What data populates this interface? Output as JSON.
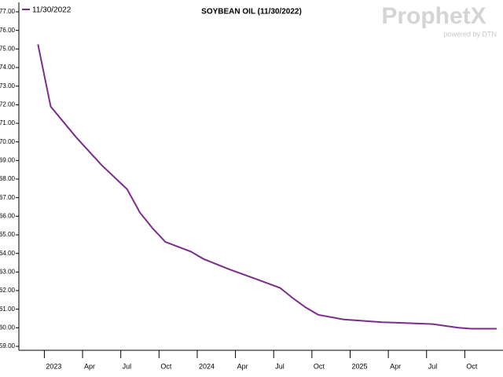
{
  "chart_data": {
    "type": "line",
    "title": "SOYBEAN OIL (11/30/2022)",
    "logo": {
      "text": "ProphetX",
      "subtext": "powered by DTN"
    },
    "x": [
      "2022-12",
      "2023-01",
      "2023-03",
      "2023-05",
      "2023-07",
      "2023-08",
      "2023-09",
      "2023-10",
      "2023-12",
      "2024-01",
      "2024-03",
      "2024-05",
      "2024-07",
      "2024-08",
      "2024-09",
      "2024-10",
      "2024-12",
      "2025-01",
      "2025-03",
      "2025-05",
      "2025-07",
      "2025-08",
      "2025-09",
      "2025-10",
      "2025-12"
    ],
    "series": [
      {
        "name": "11/30/2022",
        "color": "#7b2d8e",
        "values": [
          75.25,
          71.9,
          70.25,
          68.75,
          67.45,
          66.2,
          65.35,
          64.62,
          64.1,
          63.7,
          63.15,
          62.65,
          62.15,
          61.6,
          61.1,
          60.7,
          60.45,
          60.4,
          60.3,
          60.25,
          60.2,
          60.1,
          60.0,
          59.95,
          59.95
        ]
      }
    ],
    "xlim": [
      "2022-11",
      "2026-01"
    ],
    "xticks": [
      {
        "value": "2023-01",
        "label": "2023"
      },
      {
        "value": "2023-04",
        "label": "Apr"
      },
      {
        "value": "2023-07",
        "label": "Jul"
      },
      {
        "value": "2023-10",
        "label": "Oct"
      },
      {
        "value": "2024-01",
        "label": "2024"
      },
      {
        "value": "2024-04",
        "label": "Apr"
      },
      {
        "value": "2024-07",
        "label": "Jul"
      },
      {
        "value": "2024-10",
        "label": "Oct"
      },
      {
        "value": "2025-01",
        "label": "2025"
      },
      {
        "value": "2025-04",
        "label": "Apr"
      },
      {
        "value": "2025-07",
        "label": "Jul"
      },
      {
        "value": "2025-10",
        "label": "Oct"
      }
    ],
    "ylim": [
      59,
      77
    ],
    "yticks": [
      {
        "value": 59,
        "label": "59.00"
      },
      {
        "value": 60,
        "label": "60.00"
      },
      {
        "value": 61,
        "label": "61.00"
      },
      {
        "value": 62,
        "label": "62.00"
      },
      {
        "value": 63,
        "label": "63.00"
      },
      {
        "value": 64,
        "label": "64.00"
      },
      {
        "value": 65,
        "label": "65.00"
      },
      {
        "value": 66,
        "label": "66.00"
      },
      {
        "value": 67,
        "label": "67.00"
      },
      {
        "value": 68,
        "label": "68.00"
      },
      {
        "value": 69,
        "label": "69.00"
      },
      {
        "value": 70,
        "label": "70.00"
      },
      {
        "value": 71,
        "label": "71.00"
      },
      {
        "value": 72,
        "label": "72.00"
      },
      {
        "value": 73,
        "label": "73.00"
      },
      {
        "value": 74,
        "label": "74.00"
      },
      {
        "value": 75,
        "label": "75.00"
      },
      {
        "value": 76,
        "label": "76.00"
      },
      {
        "value": 77,
        "label": "77.00"
      }
    ]
  }
}
